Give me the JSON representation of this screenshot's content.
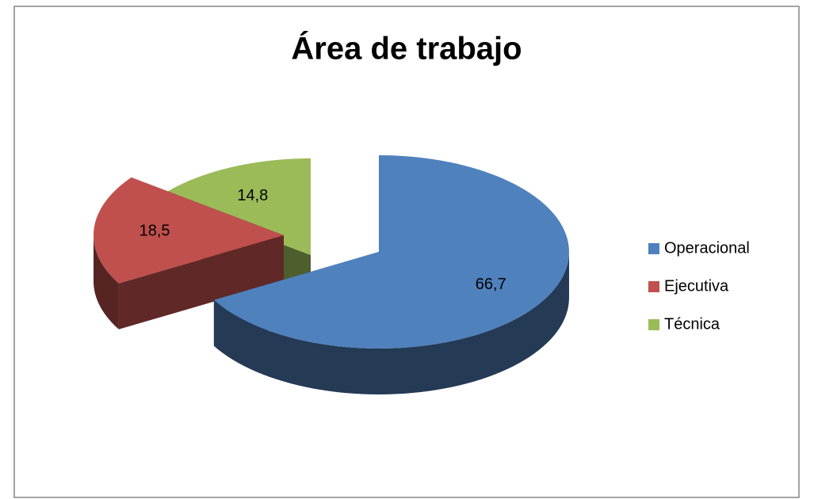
{
  "chart_data": {
    "type": "pie",
    "title": "Área de trabajo",
    "categories": [
      "Operacional",
      "Ejecutiva",
      "Técnica"
    ],
    "values": [
      66.7,
      18.5,
      14.8
    ],
    "value_labels": [
      "66,7",
      "18,5",
      "14,8"
    ],
    "colors": [
      "#4f81bd",
      "#c0504d",
      "#9bbb59"
    ],
    "legend": "right"
  }
}
